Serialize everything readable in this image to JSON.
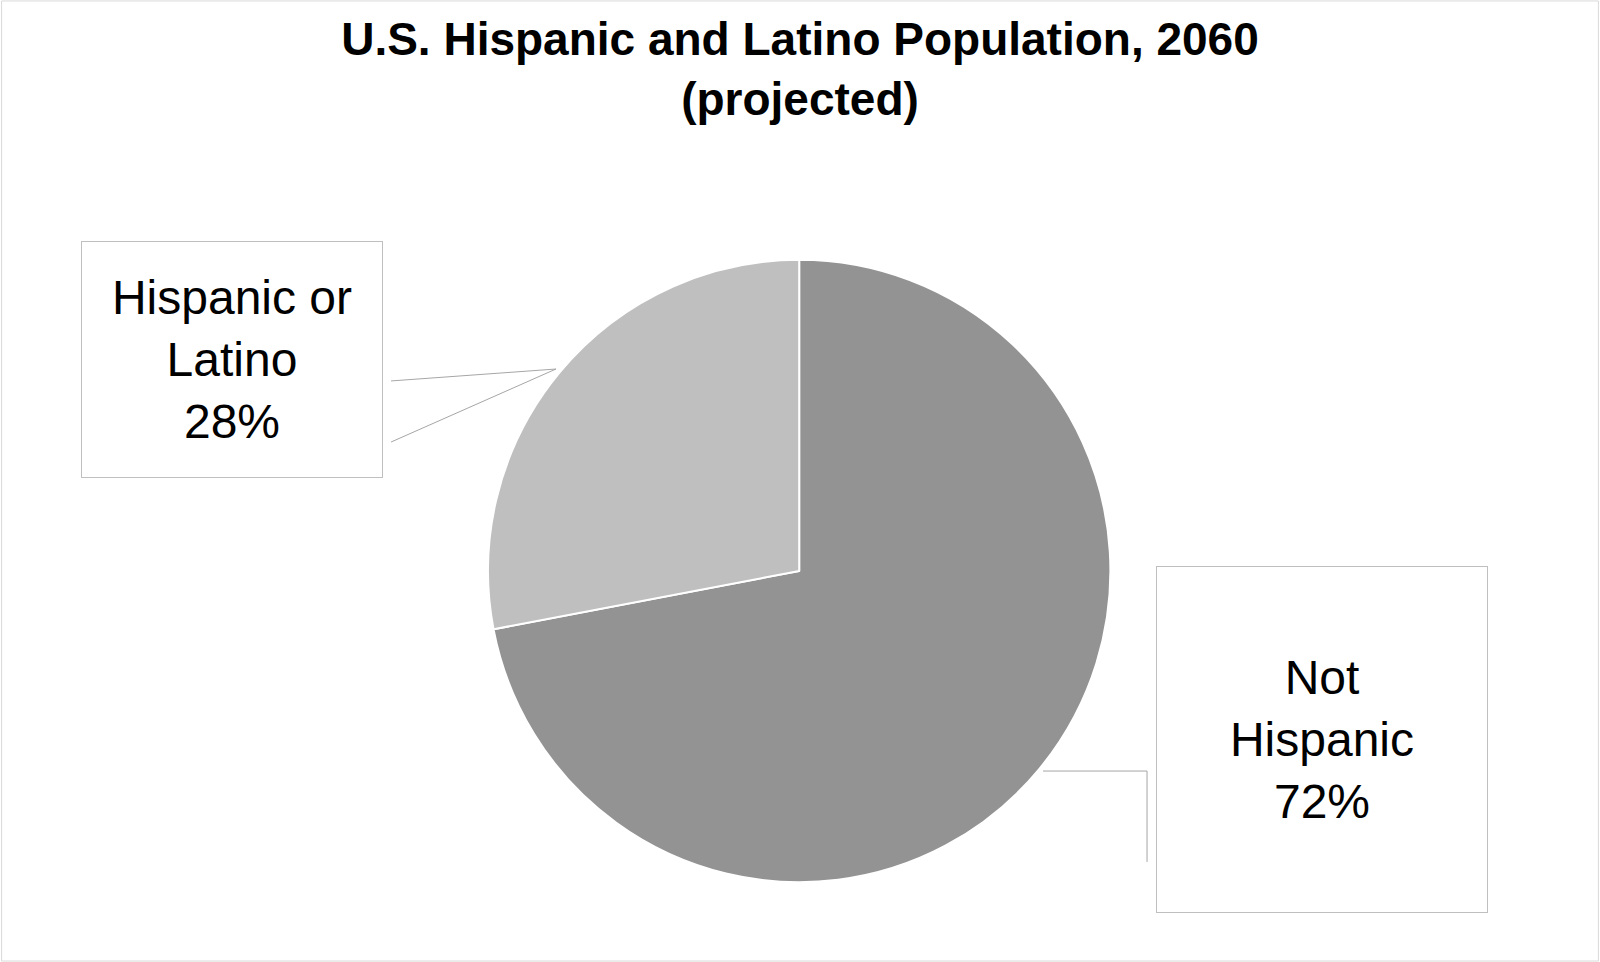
{
  "chart_data": {
    "type": "pie",
    "title": "U.S. Hispanic and Latino Population, 2060 (projected)",
    "categories": [
      "Not Hispanic",
      "Hispanic or Latino"
    ],
    "values": [
      72,
      28
    ],
    "value_labels": [
      "72%",
      "28%"
    ],
    "colors": [
      "#939393",
      "#bfbfbf"
    ],
    "data_labels": true
  }
}
